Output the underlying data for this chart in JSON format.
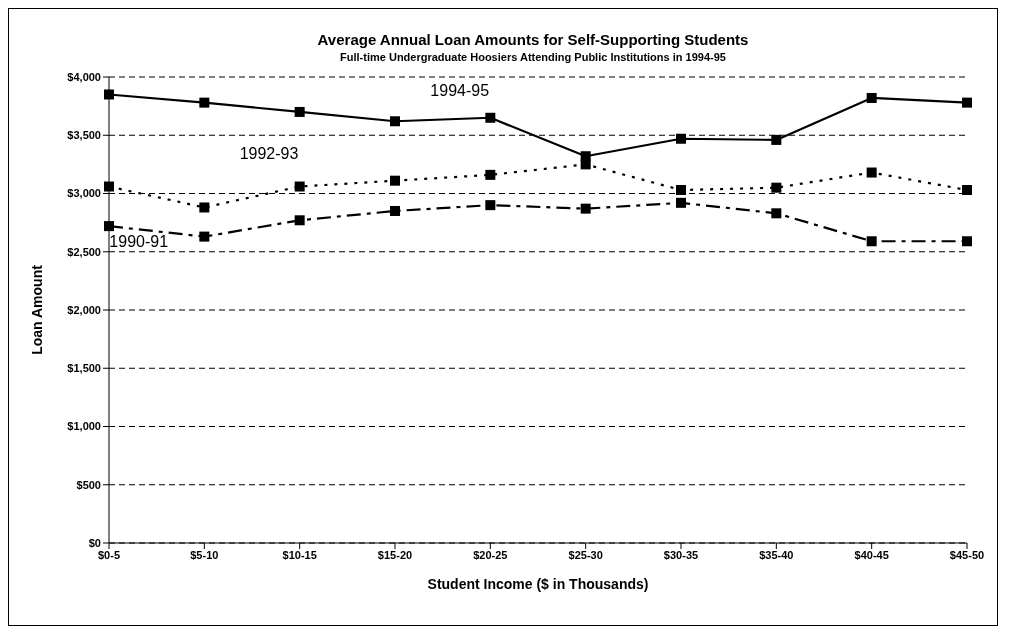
{
  "chart_data": {
    "type": "line",
    "title": "Average Annual Loan Amounts for Self-Supporting Students",
    "subtitle": "Full-time Undergraduate Hoosiers Attending Public Institutions in 1994-95",
    "xlabel": "Student Income ($ in Thousands)",
    "ylabel": "Loan Amount",
    "categories": [
      "$0-5",
      "$5-10",
      "$10-15",
      "$15-20",
      "$20-25",
      "$25-30",
      "$30-35",
      "$35-40",
      "$40-45",
      "$45-50"
    ],
    "series": [
      {
        "name": "1994-95",
        "color": "#000000",
        "line_style": "solid",
        "values": [
          3850,
          3780,
          3700,
          3620,
          3650,
          3320,
          3470,
          3460,
          3820,
          3780
        ]
      },
      {
        "name": "1992-93",
        "color": "#000000",
        "line_style": "dotted",
        "values": [
          3060,
          2880,
          3060,
          3110,
          3160,
          3250,
          3030,
          3050,
          3180,
          3030
        ]
      },
      {
        "name": "1990-91",
        "color": "#000000",
        "line_style": "dashed",
        "values": [
          2720,
          2630,
          2770,
          2850,
          2900,
          2870,
          2920,
          2830,
          2590,
          2590
        ]
      }
    ],
    "ylim": [
      0,
      4000
    ],
    "yticks": [
      {
        "value": 0,
        "label": "$0"
      },
      {
        "value": 500,
        "label": "$500"
      },
      {
        "value": 1000,
        "label": "$1,000"
      },
      {
        "value": 1500,
        "label": "$1,500"
      },
      {
        "value": 2000,
        "label": "$2,000"
      },
      {
        "value": 2500,
        "label": "$2,500"
      },
      {
        "value": 3000,
        "label": "$3,000"
      },
      {
        "value": 3500,
        "label": "$3,500"
      },
      {
        "value": 4000,
        "label": "$4,000"
      }
    ],
    "grid": "y",
    "marker": "square"
  }
}
